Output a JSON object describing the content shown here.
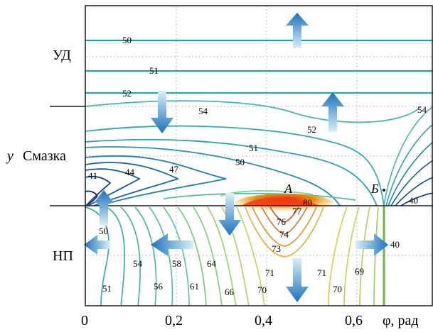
{
  "chart_data": {
    "type": "contour",
    "x_axis": {
      "label": "φ, рад",
      "ticks": [
        {
          "value": 0,
          "label": "0"
        },
        {
          "value": 0.2,
          "label": "0,2"
        },
        {
          "value": 0.4,
          "label": "0,4"
        },
        {
          "value": 0.6,
          "label": "0,6"
        }
      ],
      "range": [
        0,
        0.76
      ]
    },
    "y_axis": {
      "label": "y",
      "range": [
        0,
        1
      ],
      "zones": [
        {
          "label": "УД"
        },
        {
          "label": "Смазка"
        },
        {
          "label": "НП"
        }
      ]
    },
    "grid": true,
    "interface_level": 0.37,
    "points": [
      {
        "label": "A"
      },
      {
        "label": "Б"
      }
    ],
    "contour_levels_labeled": [
      {
        "value": "50"
      },
      {
        "value": "51"
      },
      {
        "value": "52"
      },
      {
        "value": "54"
      },
      {
        "value": "52"
      },
      {
        "value": "51"
      },
      {
        "value": "50"
      },
      {
        "value": "47"
      },
      {
        "value": "44"
      },
      {
        "value": "41"
      },
      {
        "value": "54"
      },
      {
        "value": "80"
      },
      {
        "value": "77"
      },
      {
        "value": "76"
      },
      {
        "value": "74"
      },
      {
        "value": "73"
      },
      {
        "value": "40"
      },
      {
        "value": "50"
      },
      {
        "value": "54"
      },
      {
        "value": "58"
      },
      {
        "value": "64"
      },
      {
        "value": "56"
      },
      {
        "value": "61"
      },
      {
        "value": "66"
      },
      {
        "value": "70"
      },
      {
        "value": "71"
      },
      {
        "value": "71"
      },
      {
        "value": "70"
      },
      {
        "value": "69"
      },
      {
        "value": "51"
      },
      {
        "value": "40"
      }
    ],
    "arrows": [
      {
        "direction": "up"
      },
      {
        "direction": "down"
      },
      {
        "direction": "up"
      },
      {
        "direction": "up"
      },
      {
        "direction": "down"
      },
      {
        "direction": "left"
      },
      {
        "direction": "left"
      },
      {
        "direction": "down"
      },
      {
        "direction": "right"
      }
    ]
  }
}
